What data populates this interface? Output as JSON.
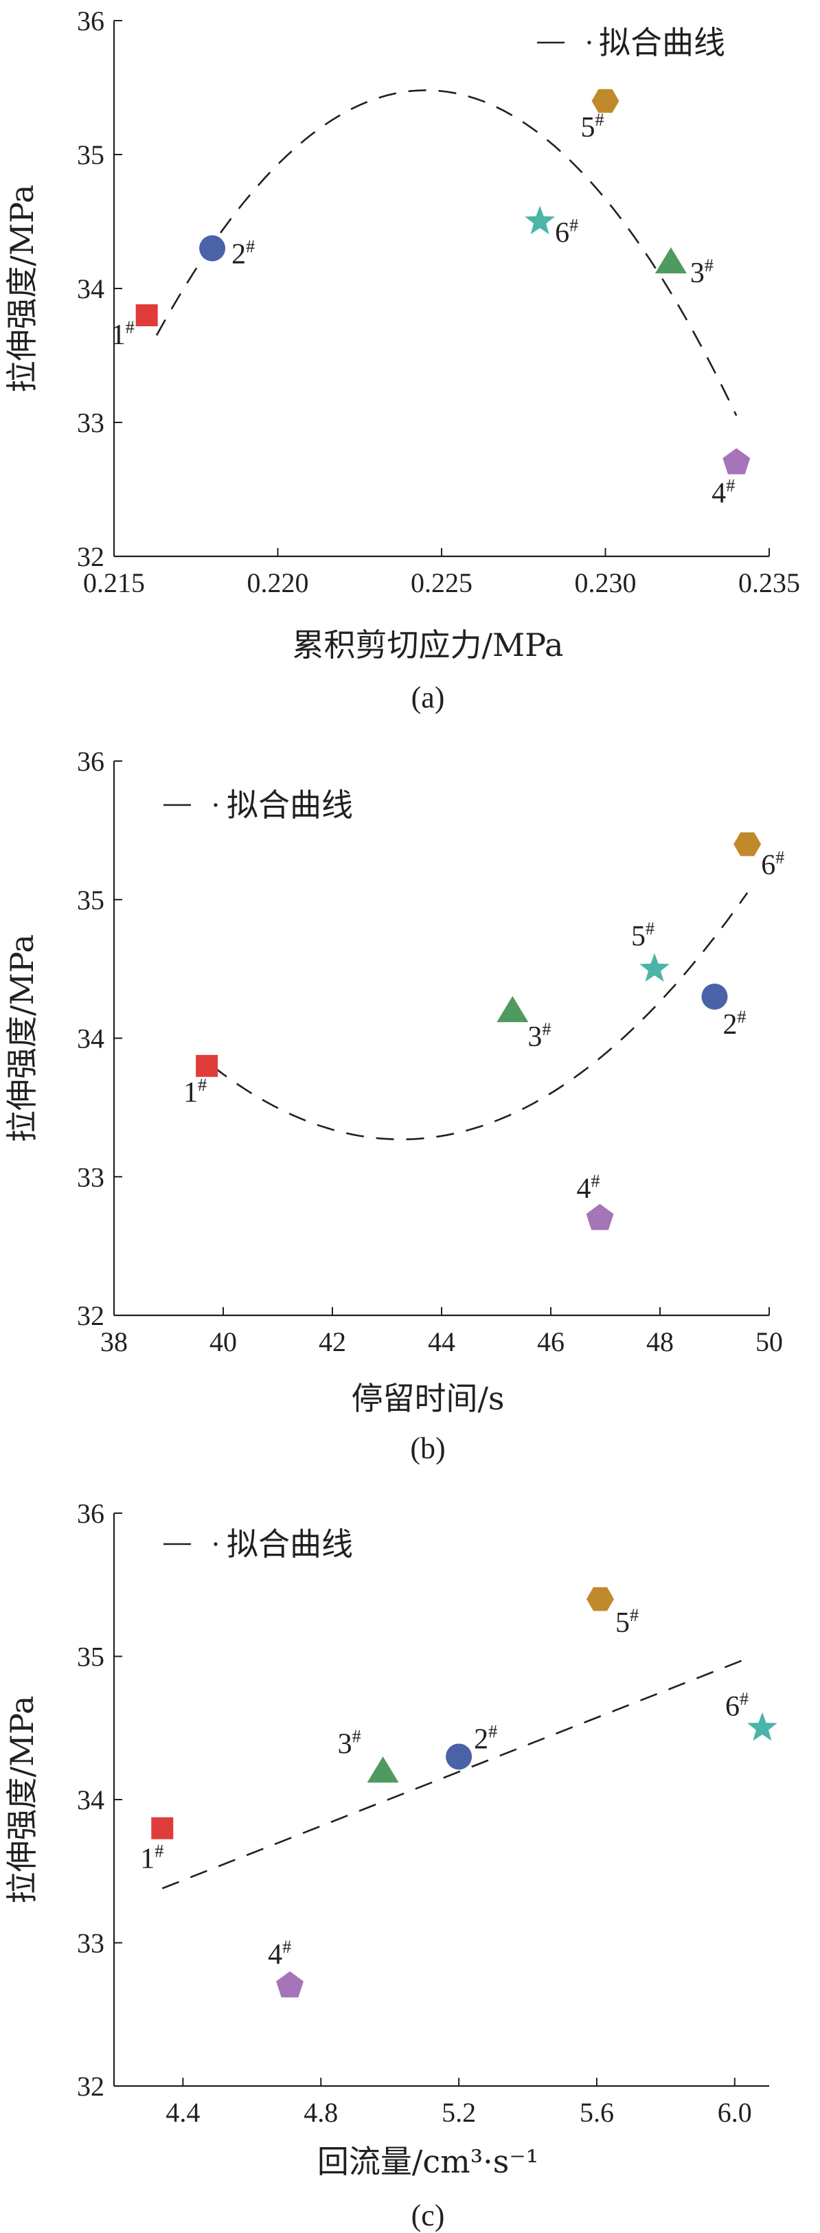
{
  "chart_data": [
    {
      "type": "scatter",
      "caption": "(a)",
      "xlabel": "累积剪切应力/MPa",
      "ylabel": "拉伸强度/MPa",
      "xlim": [
        0.215,
        0.235
      ],
      "ylim": [
        32,
        36
      ],
      "xticks": [
        "0.215",
        "0.220",
        "0.225",
        "0.230",
        "0.235"
      ],
      "xtick_values": [
        0.215,
        0.22,
        0.225,
        0.23,
        0.235
      ],
      "yticks": [
        "32",
        "33",
        "34",
        "35",
        "36"
      ],
      "yvalues": [
        32,
        33,
        34,
        35,
        36
      ],
      "legend": {
        "label": "拟合曲线",
        "position": "top-right"
      },
      "points": [
        {
          "label": "1",
          "sup": "#",
          "x": 0.216,
          "y": 33.8,
          "shape": "square",
          "color": "#e03c3c"
        },
        {
          "label": "2",
          "sup": "#",
          "x": 0.218,
          "y": 34.3,
          "shape": "circle",
          "color": "#4a62a8"
        },
        {
          "label": "3",
          "sup": "#",
          "x": 0.232,
          "y": 34.2,
          "shape": "triangle",
          "color": "#4f9a5e"
        },
        {
          "label": "4",
          "sup": "#",
          "x": 0.234,
          "y": 32.7,
          "shape": "pentagon",
          "color": "#a674b8"
        },
        {
          "label": "5",
          "sup": "#",
          "x": 0.23,
          "y": 35.4,
          "shape": "hexagon",
          "color": "#c08a2c"
        },
        {
          "label": "6",
          "sup": "#",
          "x": 0.228,
          "y": 34.5,
          "shape": "star",
          "color": "#4ab5a8"
        }
      ],
      "fit": {
        "kind": "quadratic",
        "x_from": 0.2163,
        "x_to": 0.234,
        "anchors": [
          [
            0.2163,
            33.65
          ],
          [
            0.2245,
            35.48
          ],
          [
            0.234,
            33.05
          ]
        ]
      }
    },
    {
      "type": "scatter",
      "caption": "(b)",
      "xlabel": "停留时间/s",
      "ylabel": "拉伸强度/MPa",
      "xlim": [
        38,
        50
      ],
      "ylim": [
        32,
        36
      ],
      "xticks": [
        "38",
        "40",
        "42",
        "44",
        "46",
        "48",
        "50"
      ],
      "xtick_values": [
        38,
        40,
        42,
        44,
        46,
        48,
        50
      ],
      "yticks": [
        "32",
        "33",
        "34",
        "35",
        "36"
      ],
      "yvalues": [
        32,
        33,
        34,
        35,
        36
      ],
      "legend": {
        "label": "拟合曲线",
        "position": "top-left"
      },
      "points": [
        {
          "label": "1",
          "sup": "#",
          "x": 39.7,
          "y": 33.8,
          "shape": "square",
          "color": "#e03c3c"
        },
        {
          "label": "2",
          "sup": "#",
          "x": 49.0,
          "y": 34.3,
          "shape": "circle",
          "color": "#4a62a8"
        },
        {
          "label": "3",
          "sup": "#",
          "x": 45.3,
          "y": 34.2,
          "shape": "triangle",
          "color": "#4f9a5e"
        },
        {
          "label": "4",
          "sup": "#",
          "x": 46.9,
          "y": 32.7,
          "shape": "pentagon",
          "color": "#a674b8"
        },
        {
          "label": "5",
          "sup": "#",
          "x": 47.9,
          "y": 34.5,
          "shape": "star",
          "color": "#4ab5a8"
        },
        {
          "label": "6",
          "sup": "#",
          "x": 49.6,
          "y": 35.4,
          "shape": "hexagon",
          "color": "#c08a2c"
        }
      ],
      "fit": {
        "kind": "quadratic",
        "x_from": 39.8,
        "x_to": 49.6,
        "anchors": [
          [
            39.8,
            33.8
          ],
          [
            43.3,
            33.27
          ],
          [
            49.6,
            35.05
          ]
        ]
      }
    },
    {
      "type": "scatter",
      "caption": "(c)",
      "xlabel": "回流量/cm³·s⁻¹",
      "ylabel": "拉伸强度/MPa",
      "xlim": [
        4.2,
        6.1
      ],
      "ylim": [
        32,
        36
      ],
      "xticks": [
        "4.4",
        "4.8",
        "5.2",
        "5.6",
        "6.0"
      ],
      "xtick_values": [
        4.4,
        4.8,
        5.2,
        5.6,
        6.0
      ],
      "yticks": [
        "32",
        "33",
        "34",
        "35",
        "36"
      ],
      "yvalues": [
        32,
        33,
        34,
        35,
        36
      ],
      "legend": {
        "label": "拟合曲线",
        "position": "top-left"
      },
      "points": [
        {
          "label": "1",
          "sup": "#",
          "x": 4.34,
          "y": 33.8,
          "shape": "square",
          "color": "#e03c3c"
        },
        {
          "label": "2",
          "sup": "#",
          "x": 5.2,
          "y": 34.3,
          "shape": "circle",
          "color": "#4a62a8"
        },
        {
          "label": "3",
          "sup": "#",
          "x": 4.98,
          "y": 34.2,
          "shape": "triangle",
          "color": "#4f9a5e"
        },
        {
          "label": "4",
          "sup": "#",
          "x": 4.71,
          "y": 32.7,
          "shape": "pentagon",
          "color": "#a674b8"
        },
        {
          "label": "5",
          "sup": "#",
          "x": 5.61,
          "y": 35.4,
          "shape": "hexagon",
          "color": "#c08a2c"
        },
        {
          "label": "6",
          "sup": "#",
          "x": 6.08,
          "y": 34.5,
          "shape": "star",
          "color": "#4ab5a8"
        }
      ],
      "fit": {
        "kind": "linear",
        "x_from": 4.34,
        "x_to": 6.02,
        "anchors": [
          [
            4.34,
            33.38
          ],
          [
            6.02,
            34.97
          ]
        ]
      }
    }
  ]
}
